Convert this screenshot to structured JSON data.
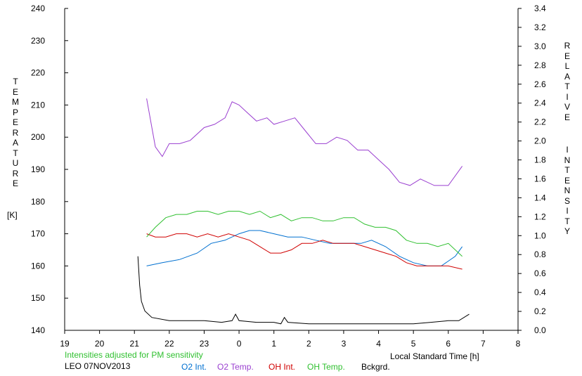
{
  "chart_data": {
    "type": "line",
    "left_axis": {
      "label_letters": [
        "T",
        "E",
        "M",
        "P",
        "E",
        "R",
        "A",
        "T",
        "U",
        "R",
        "E"
      ],
      "unit": "[K]",
      "range": [
        140,
        240
      ],
      "ticks": [
        "140",
        "150",
        "160",
        "170",
        "180",
        "190",
        "200",
        "210",
        "220",
        "230",
        "240"
      ]
    },
    "right_axis": {
      "label_letters_1": [
        "R",
        "E",
        "L",
        "A",
        "T",
        "I",
        "V",
        "E"
      ],
      "label_letters_2": [
        "I",
        "N",
        "T",
        "E",
        "N",
        "S",
        "I",
        "T",
        "Y"
      ],
      "range": [
        0.0,
        3.4
      ],
      "ticks": [
        "0.0",
        "0.2",
        "0.4",
        "0.6",
        "0.8",
        "1.0",
        "1.2",
        "1.4",
        "1.6",
        "1.8",
        "2.0",
        "2.2",
        "2.4",
        "2.6",
        "2.8",
        "3.0",
        "3.2",
        "3.4"
      ]
    },
    "x_axis": {
      "label": "Local Standard Time [h]",
      "range": [
        19,
        32
      ],
      "ticks": [
        "19",
        "20",
        "21",
        "22",
        "23",
        "0",
        "1",
        "2",
        "3",
        "4",
        "5",
        "6",
        "7",
        "8"
      ]
    },
    "note": "Intensities adjusted for PM sensitivity",
    "station": "LEO 07NOV2013",
    "series": [
      {
        "name": "O2 Int.",
        "color": "#0070d0",
        "axis": "left",
        "points": [
          [
            21.35,
            160
          ],
          [
            21.8,
            161
          ],
          [
            22.3,
            162
          ],
          [
            22.8,
            164
          ],
          [
            23.2,
            167
          ],
          [
            23.6,
            168
          ],
          [
            24.0,
            170
          ],
          [
            24.3,
            171
          ],
          [
            24.6,
            171
          ],
          [
            25.0,
            170
          ],
          [
            25.4,
            169
          ],
          [
            25.8,
            169
          ],
          [
            26.2,
            168
          ],
          [
            26.6,
            167
          ],
          [
            27.0,
            167
          ],
          [
            27.5,
            167
          ],
          [
            27.8,
            168
          ],
          [
            28.2,
            166
          ],
          [
            28.6,
            163
          ],
          [
            29.0,
            161
          ],
          [
            29.4,
            160
          ],
          [
            29.8,
            160
          ],
          [
            30.2,
            163
          ],
          [
            30.4,
            166
          ]
        ]
      },
      {
        "name": "O2 Temp.",
        "color": "#9a3fd0",
        "axis": "left",
        "points": [
          [
            21.35,
            212
          ],
          [
            21.6,
            197
          ],
          [
            21.8,
            194
          ],
          [
            22.0,
            198
          ],
          [
            22.3,
            198
          ],
          [
            22.6,
            199
          ],
          [
            23.0,
            203
          ],
          [
            23.3,
            204
          ],
          [
            23.6,
            206
          ],
          [
            23.8,
            211
          ],
          [
            24.0,
            210
          ],
          [
            24.2,
            208
          ],
          [
            24.5,
            205
          ],
          [
            24.8,
            206
          ],
          [
            25.0,
            204
          ],
          [
            25.3,
            205
          ],
          [
            25.6,
            206
          ],
          [
            25.9,
            202
          ],
          [
            26.2,
            198
          ],
          [
            26.5,
            198
          ],
          [
            26.8,
            200
          ],
          [
            27.1,
            199
          ],
          [
            27.4,
            196
          ],
          [
            27.7,
            196
          ],
          [
            28.0,
            193
          ],
          [
            28.3,
            190
          ],
          [
            28.6,
            186
          ],
          [
            28.9,
            185
          ],
          [
            29.2,
            187
          ],
          [
            29.6,
            185
          ],
          [
            30.0,
            185
          ],
          [
            30.4,
            191
          ]
        ]
      },
      {
        "name": "OH Int.",
        "color": "#d00000",
        "axis": "left",
        "points": [
          [
            21.35,
            170
          ],
          [
            21.6,
            169
          ],
          [
            21.9,
            169
          ],
          [
            22.2,
            170
          ],
          [
            22.5,
            170
          ],
          [
            22.8,
            169
          ],
          [
            23.1,
            170
          ],
          [
            23.4,
            169
          ],
          [
            23.7,
            170
          ],
          [
            24.0,
            169
          ],
          [
            24.3,
            168
          ],
          [
            24.6,
            166
          ],
          [
            24.9,
            164
          ],
          [
            25.2,
            164
          ],
          [
            25.5,
            165
          ],
          [
            25.8,
            167
          ],
          [
            26.1,
            167
          ],
          [
            26.4,
            168
          ],
          [
            26.7,
            167
          ],
          [
            27.0,
            167
          ],
          [
            27.3,
            167
          ],
          [
            27.6,
            166
          ],
          [
            27.9,
            165
          ],
          [
            28.2,
            164
          ],
          [
            28.5,
            163
          ],
          [
            28.8,
            161
          ],
          [
            29.1,
            160
          ],
          [
            29.4,
            160
          ],
          [
            29.7,
            160
          ],
          [
            30.0,
            160
          ],
          [
            30.4,
            159
          ]
        ]
      },
      {
        "name": "OH Temp.",
        "color": "#30c030",
        "axis": "left",
        "points": [
          [
            21.35,
            169
          ],
          [
            21.6,
            172
          ],
          [
            21.9,
            175
          ],
          [
            22.2,
            176
          ],
          [
            22.5,
            176
          ],
          [
            22.8,
            177
          ],
          [
            23.1,
            177
          ],
          [
            23.4,
            176
          ],
          [
            23.7,
            177
          ],
          [
            24.0,
            177
          ],
          [
            24.3,
            176
          ],
          [
            24.6,
            177
          ],
          [
            24.9,
            175
          ],
          [
            25.2,
            176
          ],
          [
            25.5,
            174
          ],
          [
            25.8,
            175
          ],
          [
            26.1,
            175
          ],
          [
            26.4,
            174
          ],
          [
            26.7,
            174
          ],
          [
            27.0,
            175
          ],
          [
            27.3,
            175
          ],
          [
            27.6,
            173
          ],
          [
            27.9,
            172
          ],
          [
            28.2,
            172
          ],
          [
            28.5,
            171
          ],
          [
            28.8,
            168
          ],
          [
            29.1,
            167
          ],
          [
            29.4,
            167
          ],
          [
            29.7,
            166
          ],
          [
            30.0,
            167
          ],
          [
            30.4,
            163
          ]
        ]
      },
      {
        "name": "Bckgrd.",
        "color": "#000000",
        "axis": "left",
        "points": [
          [
            21.1,
            163
          ],
          [
            21.15,
            154
          ],
          [
            21.2,
            149
          ],
          [
            21.3,
            146
          ],
          [
            21.5,
            144
          ],
          [
            22.0,
            143
          ],
          [
            22.5,
            143
          ],
          [
            23.0,
            143
          ],
          [
            23.5,
            142.5
          ],
          [
            23.8,
            143
          ],
          [
            23.9,
            145
          ],
          [
            24.0,
            143
          ],
          [
            24.5,
            142.5
          ],
          [
            25.0,
            142.5
          ],
          [
            25.2,
            142
          ],
          [
            25.3,
            144
          ],
          [
            25.4,
            142.5
          ],
          [
            26.0,
            142
          ],
          [
            26.5,
            142
          ],
          [
            27.0,
            142
          ],
          [
            27.5,
            142
          ],
          [
            28.0,
            142
          ],
          [
            28.5,
            142
          ],
          [
            29.0,
            142
          ],
          [
            29.5,
            142.5
          ],
          [
            30.0,
            143
          ],
          [
            30.3,
            143
          ],
          [
            30.6,
            145
          ]
        ]
      }
    ]
  }
}
